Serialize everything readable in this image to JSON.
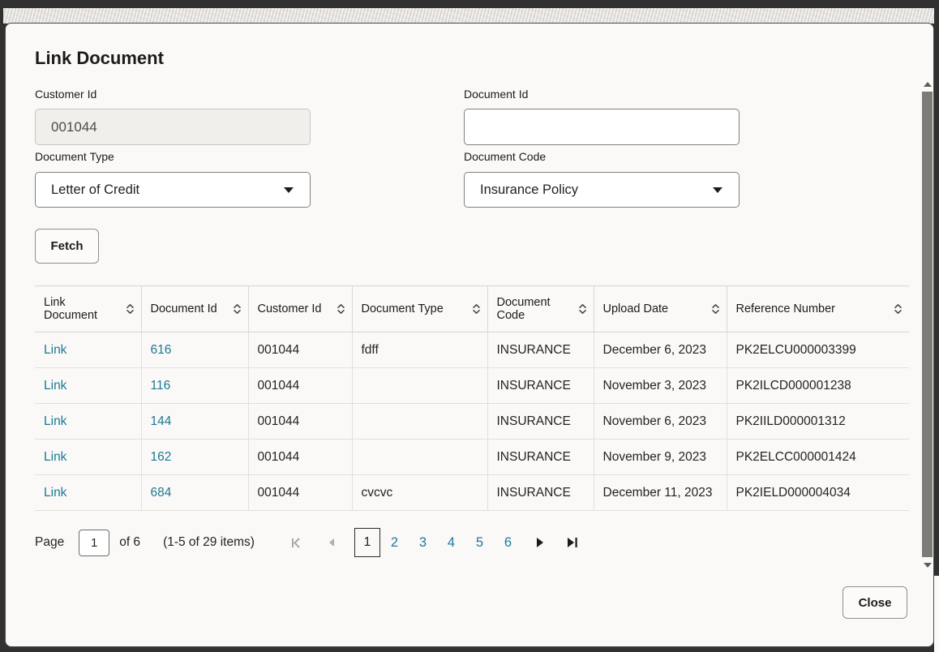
{
  "dialog": {
    "title": "Link Document",
    "fetch_label": "Fetch",
    "close_label": "Close",
    "fields": {
      "customer_id": {
        "label": "Customer Id",
        "value": "001044"
      },
      "document_id": {
        "label": "Document Id",
        "value": ""
      },
      "document_type": {
        "label": "Document Type",
        "selected": "Letter of Credit"
      },
      "document_code": {
        "label": "Document Code",
        "selected": "Insurance Policy"
      }
    }
  },
  "table": {
    "columns": [
      "Link Document",
      "Document Id",
      "Customer Id",
      "Document Type",
      "Document Code",
      "Upload Date",
      "Reference Number"
    ],
    "rows": [
      {
        "link_document": "Link",
        "document_id": "616",
        "customer_id": "001044",
        "document_type": "fdff",
        "document_code": "INSURANCE",
        "upload_date": "December 6, 2023",
        "reference_number": "PK2ELCU000003399"
      },
      {
        "link_document": "Link",
        "document_id": "116",
        "customer_id": "001044",
        "document_type": "",
        "document_code": "INSURANCE",
        "upload_date": "November 3, 2023",
        "reference_number": "PK2ILCD000001238"
      },
      {
        "link_document": "Link",
        "document_id": "144",
        "customer_id": "001044",
        "document_type": "",
        "document_code": "INSURANCE",
        "upload_date": "November 6, 2023",
        "reference_number": "PK2IILD000001312"
      },
      {
        "link_document": "Link",
        "document_id": "162",
        "customer_id": "001044",
        "document_type": "",
        "document_code": "INSURANCE",
        "upload_date": "November 9, 2023",
        "reference_number": "PK2ELCC000001424"
      },
      {
        "link_document": "Link",
        "document_id": "684",
        "customer_id": "001044",
        "document_type": "cvcvc",
        "document_code": "INSURANCE",
        "upload_date": "December 11, 2023",
        "reference_number": "PK2IELD000004034"
      }
    ]
  },
  "pagination": {
    "page_label": "Page",
    "page_value": "1",
    "of_label": "of 6",
    "items_label": "(1-5 of 29 items)",
    "pages": [
      "1",
      "2",
      "3",
      "4",
      "5",
      "6"
    ],
    "current_page": "1"
  },
  "colors": {
    "link": "#1b7a93",
    "pagination_link": "#21789e"
  }
}
